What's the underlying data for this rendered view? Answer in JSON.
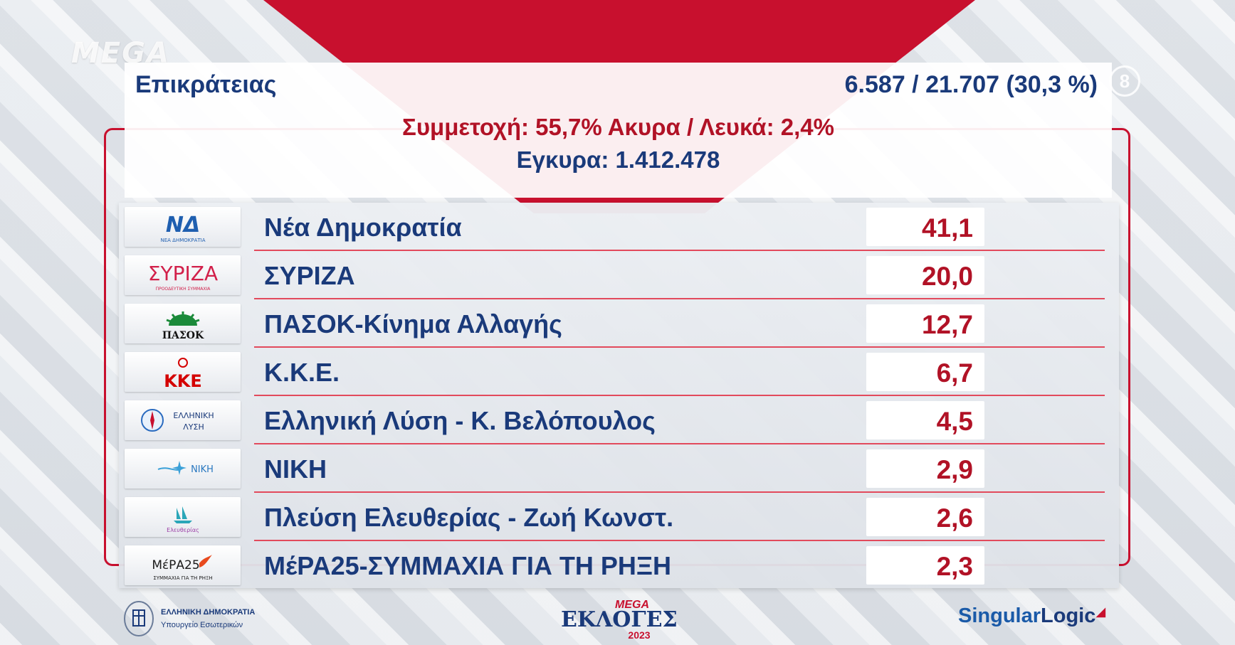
{
  "broadcaster": {
    "logo_text": "MEGA",
    "channel_number": "8"
  },
  "header": {
    "region": "Επικράτειας",
    "counted": "6.587 / 21.707  (30,3 %)",
    "turnout_line": "Συμμετοχή: 55,7%  Ακυρα / Λευκά: 2,4%",
    "valid_line": "Εγκυρα: 1.412.478"
  },
  "parties": [
    {
      "logo": "ΝΔ",
      "logo_sub": "ΝΕΑ ΔΗΜΟΚΡΑΤΙΑ",
      "name": "Νέα Δημοκρατία",
      "value": "41,1"
    },
    {
      "logo": "ΣΥΡΙΖΑ",
      "logo_sub": "ΠΡΟΟΔΕΥΤΙΚΗ ΣΥΜΜΑΧΙΑ",
      "name": "ΣΥΡΙΖΑ",
      "value": "20,0"
    },
    {
      "logo": "ΠΑΣΟΚ",
      "logo_sub": "",
      "name": "ΠΑΣΟΚ-Κίνημα Αλλαγής",
      "value": "12,7"
    },
    {
      "logo": "ΚΚΕ",
      "logo_sub": "",
      "name": "Κ.Κ.Ε.",
      "value": "6,7"
    },
    {
      "logo": "ΕΛΛΗΝΙΚΗ",
      "logo_sub": "ΛΥΣΗ",
      "name": "Ελληνική Λύση - Κ. Βελόπουλος",
      "value": "4,5"
    },
    {
      "logo": "ΝΙΚΗ",
      "logo_sub": "",
      "name": "ΝΙΚΗ",
      "value": "2,9"
    },
    {
      "logo": "Ελευθερίας",
      "logo_sub": "",
      "name": "Πλεύση Ελευθερίας - Ζωή Κωνστ.",
      "value": "2,6"
    },
    {
      "logo": "ΜέΡΑ25",
      "logo_sub": "ΣΥΜΜΑΧΙΑ ΓΙΑ ΤΗ ΡΗΞΗ",
      "name": "ΜέΡΑ25-ΣΥΜΜΑΧΙΑ ΓΙΑ ΤΗ ΡΗΞΗ",
      "value": "2,3"
    }
  ],
  "footer": {
    "ministry_line1": "ΕΛΛΗΝΙΚΗ ΔΗΜΟΚΡΑΤΙΑ",
    "ministry_line2": "Υπουργείο Εσωτερικών",
    "show_brand": "MEGA",
    "show_title": "ΕΚΛΟΓΕΣ",
    "show_year": "2023",
    "partner_part1": "Singular",
    "partner_part2": "Logic"
  },
  "colors": {
    "accent_red": "#c8102e",
    "navy": "#1a3a7a",
    "value_red": "#b11226"
  }
}
